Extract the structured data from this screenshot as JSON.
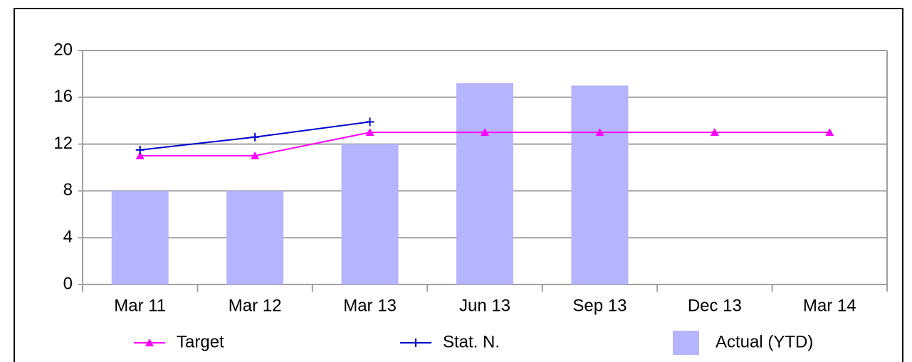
{
  "chart_data": {
    "type": "bar",
    "categories": [
      "Mar 11",
      "Mar 12",
      "Mar 13",
      "Jun 13",
      "Sep 13",
      "Dec 13",
      "Mar 14"
    ],
    "series": [
      {
        "name": "Target",
        "type": "line",
        "marker": "triangle",
        "color": "#ff00ff",
        "values": [
          11,
          11,
          13,
          13,
          13,
          13,
          13
        ]
      },
      {
        "name": "Stat. N.",
        "type": "line",
        "marker": "plus",
        "color": "#0000cc",
        "values": [
          11.5,
          12.6,
          13.9,
          null,
          null,
          null,
          null
        ]
      },
      {
        "name": "Actual (YTD)",
        "type": "bar",
        "color": "#b4b4ff",
        "values": [
          8,
          8,
          12,
          17.2,
          17,
          null,
          null
        ]
      }
    ],
    "ylim": [
      0,
      20
    ],
    "yticks": [
      0,
      4,
      8,
      12,
      16,
      20
    ],
    "grid": true,
    "legend": "bottom"
  }
}
